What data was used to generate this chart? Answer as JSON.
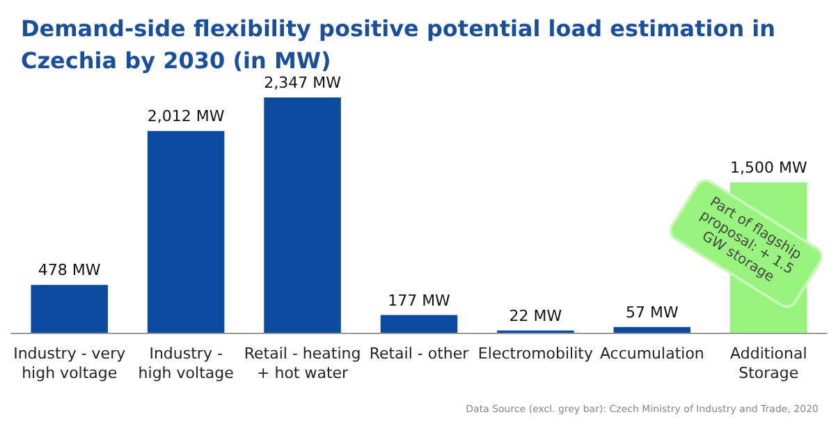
{
  "chart_data": {
    "type": "bar",
    "title": "Demand-side flexibility positive potential load estimation in Czechia by 2030 (in MW)",
    "categories": [
      "Industry - very\nhigh voltage",
      "Industry -\nhigh voltage",
      "Retail - heating\n+ hot water",
      "Retail - other",
      "Electromobility",
      "Accumulation",
      "Additional\nStorage"
    ],
    "values": [
      478,
      2012,
      2347,
      177,
      22,
      57,
      1500
    ],
    "colors": [
      "#0b4a9e",
      "#0b4a9e",
      "#0b4a9e",
      "#0b4a9e",
      "#0b4a9e",
      "#0b4a9e",
      "#98f47e"
    ],
    "value_labels": [
      "478 MW",
      "2,012 MW",
      "2,347 MW",
      "177 MW",
      "22 MW",
      "57 MW",
      "1,500 MW"
    ],
    "annotations": [
      "Part of flagship proposal: + 1.5 GW storage",
      "Data Source (excl. grey bar): Czech Ministry of Industry and Trade, 2020"
    ],
    "grid": false
  }
}
